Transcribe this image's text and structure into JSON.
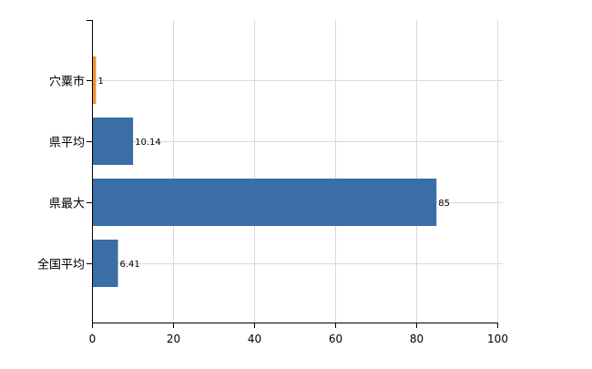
{
  "chart_data": {
    "type": "bar",
    "orientation": "horizontal",
    "categories": [
      "穴粟市",
      "県平均",
      "県最大",
      "全国平均"
    ],
    "values": [
      1,
      10.14,
      85,
      6.41
    ],
    "data_labels": [
      "1",
      "10.14",
      "85",
      "6.41"
    ],
    "bar_colors": [
      "#f28e2b",
      "#3a6ea5",
      "#3a6ea5",
      "#3a6ea5"
    ],
    "xlim": [
      0,
      100
    ],
    "x_ticks": [
      0,
      20,
      40,
      60,
      80,
      100
    ],
    "grid": true,
    "title": "",
    "xlabel": "",
    "ylabel": ""
  }
}
